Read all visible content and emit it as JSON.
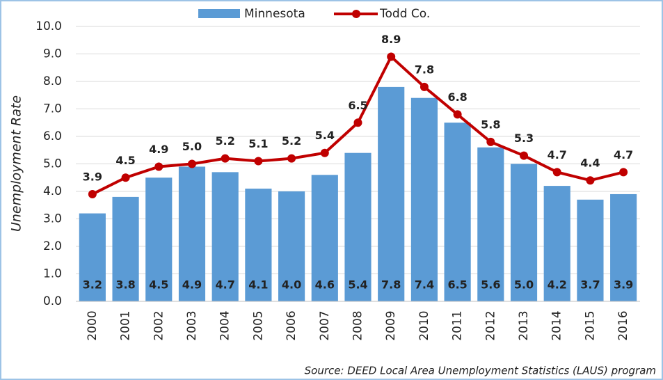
{
  "chart_data": {
    "type": "bar-line",
    "y_label": "Unemployment Rate",
    "source": "Source: DEED Local Area Unemployment Statistics (LAUS) program",
    "categories": [
      "2000",
      "2001",
      "2002",
      "2003",
      "2004",
      "2005",
      "2006",
      "2007",
      "2008",
      "2009",
      "2010",
      "2011",
      "2012",
      "2013",
      "2014",
      "2015",
      "2016"
    ],
    "series": [
      {
        "name": "Minnesota",
        "type": "bar",
        "color": "#5b9bd5",
        "values": [
          3.2,
          3.8,
          4.5,
          4.9,
          4.7,
          4.1,
          4.0,
          4.6,
          5.4,
          7.8,
          7.4,
          6.5,
          5.6,
          5.0,
          4.2,
          3.7,
          3.9
        ],
        "value_labels": [
          "3.2",
          "3.8",
          "4.5",
          "4.9",
          "4.7",
          "4.1",
          "4.0",
          "4.6",
          "5.4",
          "7.8",
          "7.4",
          "6.5",
          "5.6",
          "5.0",
          "4.2",
          "3.7",
          "3.9"
        ]
      },
      {
        "name": "Todd Co.",
        "type": "line",
        "color": "#c00000",
        "values": [
          3.9,
          4.5,
          4.9,
          5.0,
          5.2,
          5.1,
          5.2,
          5.4,
          6.5,
          8.9,
          7.8,
          6.8,
          5.8,
          5.3,
          4.7,
          4.4,
          4.7
        ],
        "value_labels": [
          "3.9",
          "4.5",
          "4.9",
          "5.0",
          "5.2",
          "5.1",
          "5.2",
          "5.4",
          "6.5",
          "8.9",
          "7.8",
          "6.8",
          "5.8",
          "5.3",
          "4.7",
          "4.4",
          "4.7"
        ]
      }
    ],
    "ylim": [
      0,
      10
    ],
    "yticks": [
      {
        "value": 0,
        "label": "0.0"
      },
      {
        "value": 1,
        "label": "1.0"
      },
      {
        "value": 2,
        "label": "2.0"
      },
      {
        "value": 3,
        "label": "3.0"
      },
      {
        "value": 4,
        "label": "4.0"
      },
      {
        "value": 5,
        "label": "5.0"
      },
      {
        "value": 6,
        "label": "6.0"
      },
      {
        "value": 7,
        "label": "7.0"
      },
      {
        "value": 8,
        "label": "8.0"
      },
      {
        "value": 9,
        "label": "9.0"
      },
      {
        "value": 10,
        "label": "10.0"
      }
    ],
    "grid": true,
    "legend": "top"
  }
}
